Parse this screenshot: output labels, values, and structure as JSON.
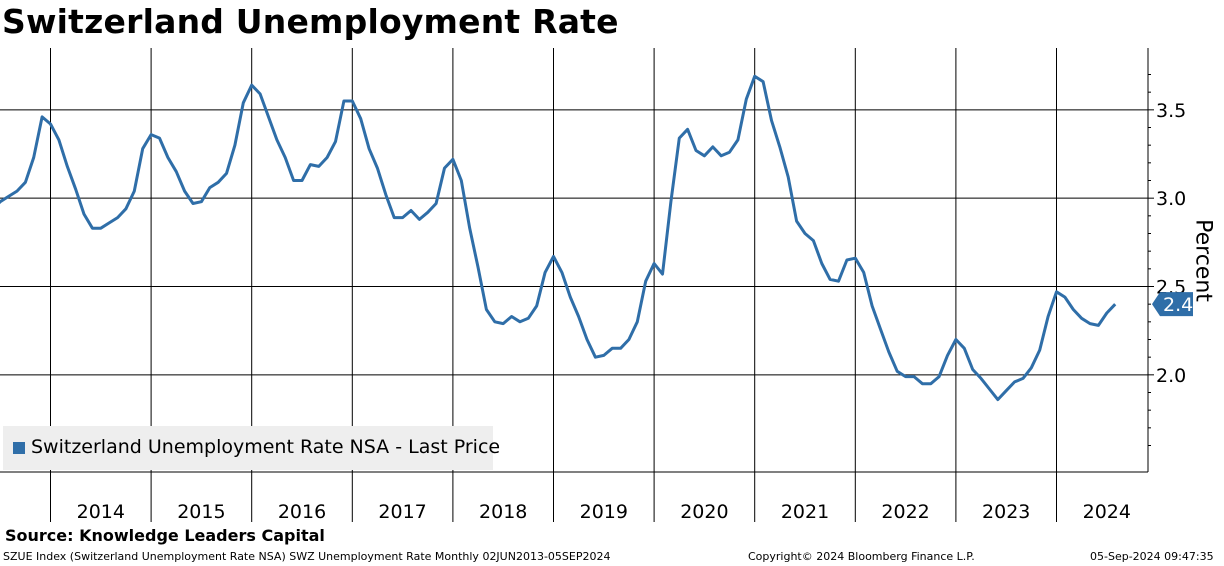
{
  "title": "Switzerland Unemployment Rate",
  "source": "Source: Knowledge Leaders Capital",
  "footer": {
    "left": "SZUE Index (Switzerland Unemployment Rate NSA) SWZ Unemployment Rate  Monthly 02JUN2013-05SEP2024",
    "mid": "Copyright© 2024 Bloomberg Finance L.P.",
    "right": "05-Sep-2024 09:47:35"
  },
  "legend": {
    "label": "Switzerland Unemployment Rate NSA - Last Price",
    "color": "#2f6ea8"
  },
  "last_value_label": "2.4",
  "chart_data": {
    "type": "line",
    "title": "Switzerland Unemployment Rate",
    "ylabel": "Percent",
    "ylim": [
      1.45,
      3.85
    ],
    "yticks": [
      "2.0",
      "2.5",
      "3.0",
      "3.5"
    ],
    "xtick_labels": [
      "2014",
      "2015",
      "2016",
      "2017",
      "2018",
      "2019",
      "2020",
      "2021",
      "2022",
      "2023",
      "2024"
    ],
    "grid": true,
    "legend_position": "bottom-left",
    "series": [
      {
        "name": "Switzerland Unemployment Rate NSA - Last Price",
        "color": "#2f6ea8",
        "points": [
          [
            "2013-06",
            2.93
          ],
          [
            "2013-07",
            2.98
          ],
          [
            "2013-08",
            3.01
          ],
          [
            "2013-09",
            3.04
          ],
          [
            "2013-10",
            3.09
          ],
          [
            "2013-11",
            3.23
          ],
          [
            "2013-12",
            3.46
          ],
          [
            "2014-01",
            3.42
          ],
          [
            "2014-02",
            3.33
          ],
          [
            "2014-03",
            3.18
          ],
          [
            "2014-04",
            3.05
          ],
          [
            "2014-05",
            2.91
          ],
          [
            "2014-06",
            2.83
          ],
          [
            "2014-07",
            2.83
          ],
          [
            "2014-08",
            2.86
          ],
          [
            "2014-09",
            2.89
          ],
          [
            "2014-10",
            2.94
          ],
          [
            "2014-11",
            3.04
          ],
          [
            "2014-12",
            3.28
          ],
          [
            "2015-01",
            3.36
          ],
          [
            "2015-02",
            3.34
          ],
          [
            "2015-03",
            3.23
          ],
          [
            "2015-04",
            3.15
          ],
          [
            "2015-05",
            3.04
          ],
          [
            "2015-06",
            2.97
          ],
          [
            "2015-07",
            2.98
          ],
          [
            "2015-08",
            3.06
          ],
          [
            "2015-09",
            3.09
          ],
          [
            "2015-10",
            3.14
          ],
          [
            "2015-11",
            3.3
          ],
          [
            "2015-12",
            3.54
          ],
          [
            "2016-01",
            3.64
          ],
          [
            "2016-02",
            3.59
          ],
          [
            "2016-03",
            3.46
          ],
          [
            "2016-04",
            3.33
          ],
          [
            "2016-05",
            3.23
          ],
          [
            "2016-06",
            3.1
          ],
          [
            "2016-07",
            3.1
          ],
          [
            "2016-08",
            3.19
          ],
          [
            "2016-09",
            3.18
          ],
          [
            "2016-10",
            3.23
          ],
          [
            "2016-11",
            3.32
          ],
          [
            "2016-12",
            3.55
          ],
          [
            "2017-01",
            3.55
          ],
          [
            "2017-02",
            3.45
          ],
          [
            "2017-03",
            3.28
          ],
          [
            "2017-04",
            3.17
          ],
          [
            "2017-05",
            3.02
          ],
          [
            "2017-06",
            2.89
          ],
          [
            "2017-07",
            2.89
          ],
          [
            "2017-08",
            2.93
          ],
          [
            "2017-09",
            2.88
          ],
          [
            "2017-10",
            2.92
          ],
          [
            "2017-11",
            2.97
          ],
          [
            "2017-12",
            3.17
          ],
          [
            "2018-01",
            3.22
          ],
          [
            "2018-02",
            3.1
          ],
          [
            "2018-03",
            2.83
          ],
          [
            "2018-04",
            2.61
          ],
          [
            "2018-05",
            2.37
          ],
          [
            "2018-06",
            2.3
          ],
          [
            "2018-07",
            2.29
          ],
          [
            "2018-08",
            2.33
          ],
          [
            "2018-09",
            2.3
          ],
          [
            "2018-10",
            2.32
          ],
          [
            "2018-11",
            2.39
          ],
          [
            "2018-12",
            2.58
          ],
          [
            "2019-01",
            2.67
          ],
          [
            "2019-02",
            2.58
          ],
          [
            "2019-03",
            2.44
          ],
          [
            "2019-04",
            2.33
          ],
          [
            "2019-05",
            2.2
          ],
          [
            "2019-06",
            2.1
          ],
          [
            "2019-07",
            2.11
          ],
          [
            "2019-08",
            2.15
          ],
          [
            "2019-09",
            2.15
          ],
          [
            "2019-10",
            2.2
          ],
          [
            "2019-11",
            2.3
          ],
          [
            "2019-12",
            2.53
          ],
          [
            "2020-01",
            2.63
          ],
          [
            "2020-02",
            2.57
          ],
          [
            "2020-03",
            2.98
          ],
          [
            "2020-04",
            3.34
          ],
          [
            "2020-05",
            3.39
          ],
          [
            "2020-06",
            3.27
          ],
          [
            "2020-07",
            3.24
          ],
          [
            "2020-08",
            3.29
          ],
          [
            "2020-09",
            3.24
          ],
          [
            "2020-10",
            3.26
          ],
          [
            "2020-11",
            3.33
          ],
          [
            "2020-12",
            3.56
          ],
          [
            "2021-01",
            3.69
          ],
          [
            "2021-02",
            3.66
          ],
          [
            "2021-03",
            3.44
          ],
          [
            "2021-04",
            3.29
          ],
          [
            "2021-05",
            3.12
          ],
          [
            "2021-06",
            2.87
          ],
          [
            "2021-07",
            2.8
          ],
          [
            "2021-08",
            2.76
          ],
          [
            "2021-09",
            2.63
          ],
          [
            "2021-10",
            2.54
          ],
          [
            "2021-11",
            2.53
          ],
          [
            "2021-12",
            2.65
          ],
          [
            "2022-01",
            2.66
          ],
          [
            "2022-02",
            2.58
          ],
          [
            "2022-03",
            2.39
          ],
          [
            "2022-04",
            2.26
          ],
          [
            "2022-05",
            2.13
          ],
          [
            "2022-06",
            2.02
          ],
          [
            "2022-07",
            1.99
          ],
          [
            "2022-08",
            1.99
          ],
          [
            "2022-09",
            1.95
          ],
          [
            "2022-10",
            1.95
          ],
          [
            "2022-11",
            1.99
          ],
          [
            "2022-12",
            2.11
          ],
          [
            "2023-01",
            2.2
          ],
          [
            "2023-02",
            2.15
          ],
          [
            "2023-03",
            2.03
          ],
          [
            "2023-04",
            1.98
          ],
          [
            "2023-05",
            1.92
          ],
          [
            "2023-06",
            1.86
          ],
          [
            "2023-07",
            1.91
          ],
          [
            "2023-08",
            1.96
          ],
          [
            "2023-09",
            1.98
          ],
          [
            "2023-10",
            2.04
          ],
          [
            "2023-11",
            2.14
          ],
          [
            "2023-12",
            2.33
          ],
          [
            "2024-01",
            2.47
          ],
          [
            "2024-02",
            2.44
          ],
          [
            "2024-03",
            2.37
          ],
          [
            "2024-04",
            2.32
          ],
          [
            "2024-05",
            2.29
          ],
          [
            "2024-06",
            2.28
          ],
          [
            "2024-07",
            2.35
          ],
          [
            "2024-08",
            2.4
          ]
        ]
      }
    ]
  }
}
